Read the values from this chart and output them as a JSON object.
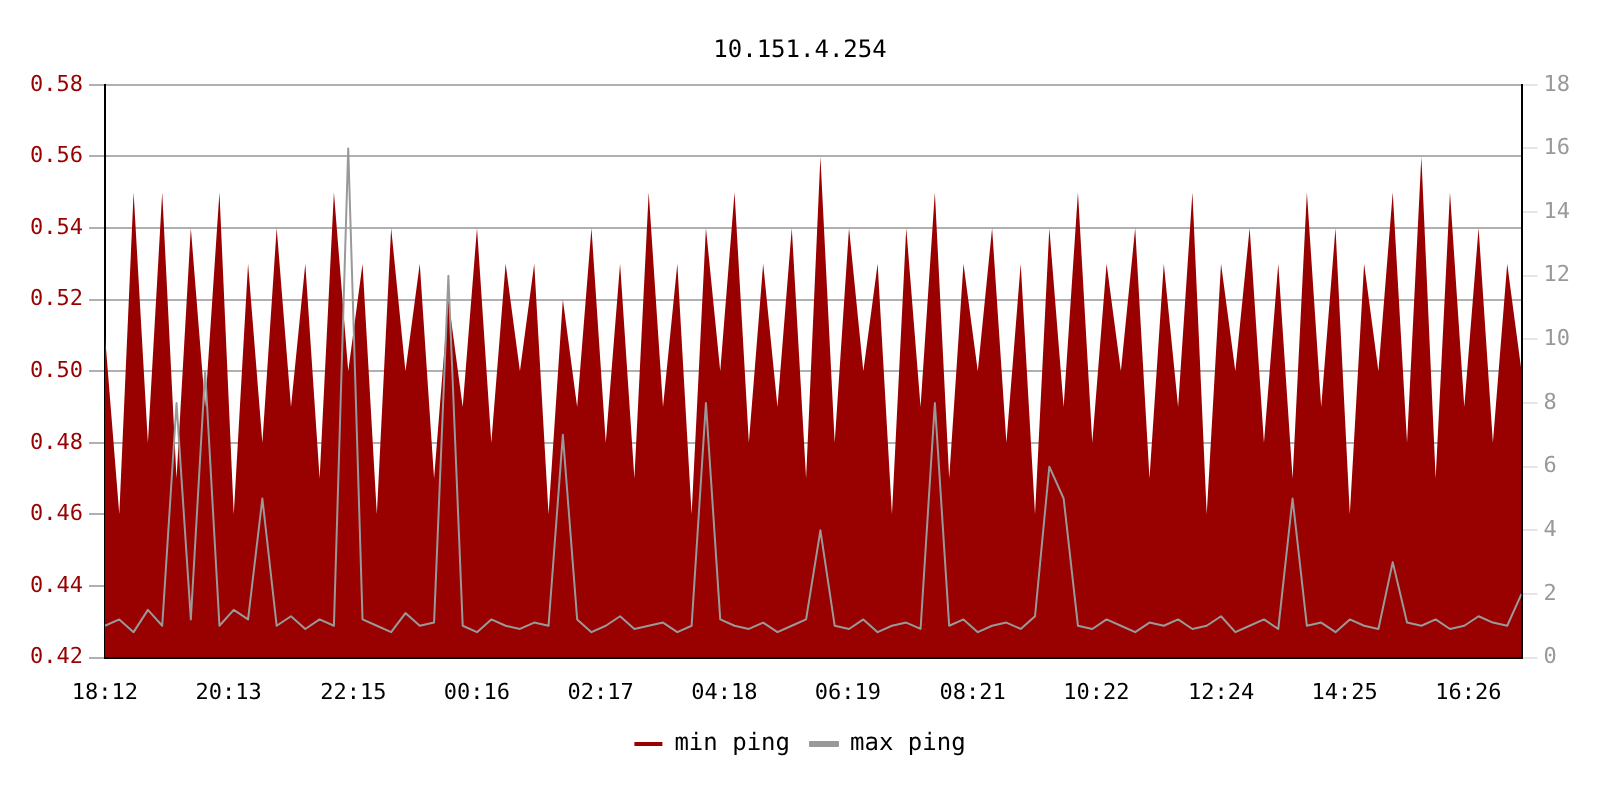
{
  "chart_data": {
    "type": "area",
    "title": "10.151.4.254",
    "x": [
      "--01-01T18:12",
      "--01-01T18:26",
      "--01-01T18:40",
      "--01-01T18:54",
      "--01-01T19:08",
      "--01-01T19:22",
      "--01-01T19:36",
      "--01-01T19:50",
      "--01-01T20:04",
      "--01-01T20:18",
      "--01-01T20:32",
      "--01-01T20:46",
      "--01-01T21:00",
      "--01-01T21:14",
      "--01-01T21:28",
      "--01-01T21:42",
      "--01-01T21:56",
      "--01-01T22:10",
      "--01-01T22:24",
      "--01-01T22:38",
      "--01-01T22:52",
      "--01-01T23:06",
      "--01-01T23:20",
      "--01-01T23:34",
      "--01-01T23:48",
      "--01-02T00:02",
      "--01-02T00:16",
      "--01-02T00:30",
      "--01-02T00:44",
      "--01-02T00:58",
      "--01-02T01:12",
      "--01-02T01:26",
      "--01-02T01:40",
      "--01-02T01:54",
      "--01-02T02:08",
      "--01-02T02:22",
      "--01-02T02:36",
      "--01-02T02:50",
      "--01-02T03:04",
      "--01-02T03:18",
      "--01-02T03:32",
      "--01-02T03:46",
      "--01-02T04:00",
      "--01-02T04:14",
      "--01-02T04:28",
      "--01-02T04:42",
      "--01-02T04:56",
      "--01-02T05:10",
      "--01-02T05:24",
      "--01-02T05:38",
      "--01-02T05:52",
      "--01-02T06:06",
      "--01-02T06:20",
      "--01-02T06:34",
      "--01-02T06:48",
      "--01-02T07:02",
      "--01-02T07:16",
      "--01-02T07:30",
      "--01-02T07:44",
      "--01-02T07:58",
      "--01-02T08:12",
      "--01-02T08:26",
      "--01-02T08:40",
      "--01-02T08:54",
      "--01-02T09:08",
      "--01-02T09:22",
      "--01-02T09:36",
      "--01-02T09:50",
      "--01-02T10:04",
      "--01-02T10:18",
      "--01-02T10:32",
      "--01-02T10:46",
      "--01-02T11:00",
      "--01-02T11:14",
      "--01-02T11:28",
      "--01-02T11:42",
      "--01-02T11:56",
      "--01-02T12:10",
      "--01-02T12:24",
      "--01-02T12:38",
      "--01-02T12:52",
      "--01-02T13:06",
      "--01-02T13:20",
      "--01-02T13:34",
      "--01-02T13:48",
      "--01-02T14:02",
      "--01-02T14:16",
      "--01-02T14:30",
      "--01-02T14:44",
      "--01-02T14:58",
      "--01-02T15:12",
      "--01-02T15:26",
      "--01-02T15:40",
      "--01-02T15:54",
      "--01-02T16:08",
      "--01-02T16:22",
      "--01-02T16:36",
      "--01-02T16:50",
      "--01-02T17:04",
      "--01-02T17:18"
    ],
    "series": [
      {
        "name": "min ping",
        "color": "#990000",
        "values": [
          0.51,
          0.46,
          0.55,
          0.48,
          0.55,
          0.47,
          0.54,
          0.49,
          0.55,
          0.46,
          0.53,
          0.48,
          0.54,
          0.49,
          0.53,
          0.47,
          0.55,
          0.5,
          0.53,
          0.46,
          0.54,
          0.5,
          0.53,
          0.47,
          0.52,
          0.49,
          0.54,
          0.48,
          0.53,
          0.5,
          0.53,
          0.46,
          0.52,
          0.49,
          0.54,
          0.48,
          0.53,
          0.47,
          0.55,
          0.49,
          0.53,
          0.46,
          0.54,
          0.5,
          0.55,
          0.48,
          0.53,
          0.49,
          0.54,
          0.47,
          0.56,
          0.48,
          0.54,
          0.5,
          0.53,
          0.46,
          0.54,
          0.49,
          0.55,
          0.47,
          0.53,
          0.5,
          0.54,
          0.48,
          0.53,
          0.46,
          0.54,
          0.49,
          0.55,
          0.48,
          0.53,
          0.5,
          0.54,
          0.47,
          0.53,
          0.49,
          0.55,
          0.46,
          0.53,
          0.5,
          0.54,
          0.48,
          0.53,
          0.47,
          0.55,
          0.49,
          0.54,
          0.46,
          0.53,
          0.5,
          0.55,
          0.48,
          0.56,
          0.47,
          0.55,
          0.49,
          0.54,
          0.48,
          0.53,
          0.5
        ]
      },
      {
        "name": "max ping",
        "type": "line",
        "axis": "y2",
        "color": "#999999",
        "values": [
          1,
          1.2,
          0.8,
          1.5,
          1,
          8,
          1.2,
          9,
          1,
          1.5,
          1.2,
          5,
          1,
          1.3,
          0.9,
          1.2,
          1,
          16,
          1.2,
          1,
          0.8,
          1.4,
          1,
          1.1,
          12,
          1,
          0.8,
          1.2,
          1,
          0.9,
          1.1,
          1,
          7,
          1.2,
          0.8,
          1,
          1.3,
          0.9,
          1,
          1.1,
          0.8,
          1,
          8,
          1.2,
          1,
          0.9,
          1.1,
          0.8,
          1,
          1.2,
          4,
          1,
          0.9,
          1.2,
          0.8,
          1,
          1.1,
          0.9,
          8,
          1,
          1.2,
          0.8,
          1,
          1.1,
          0.9,
          1.3,
          6,
          5,
          1,
          0.9,
          1.2,
          1,
          0.8,
          1.1,
          1,
          1.2,
          0.9,
          1,
          1.3,
          0.8,
          1,
          1.2,
          0.9,
          5,
          1,
          1.1,
          0.8,
          1.2,
          1,
          0.9,
          3,
          1.1,
          1,
          1.2,
          0.9,
          1,
          1.3,
          1.1,
          1,
          2
        ]
      }
    ],
    "xlim": [
      "--01-01T18:12",
      "--01-02T17:18"
    ],
    "xticks": [
      {
        "value": "--01-01T18:12",
        "label": "18:12"
      },
      {
        "value": "--01-01T20:13",
        "label": "20:13"
      },
      {
        "value": "--01-01T22:15",
        "label": "22:15"
      },
      {
        "value": "--01-02T00:16",
        "label": "00:16"
      },
      {
        "value": "--01-02T02:17",
        "label": "02:17"
      },
      {
        "value": "--01-02T04:18",
        "label": "04:18"
      },
      {
        "value": "--01-02T06:19",
        "label": "06:19"
      },
      {
        "value": "--01-02T08:21",
        "label": "08:21"
      },
      {
        "value": "--01-02T10:22",
        "label": "10:22"
      },
      {
        "value": "--01-02T12:24",
        "label": "12:24"
      },
      {
        "value": "--01-02T14:25",
        "label": "14:25"
      },
      {
        "value": "--01-02T16:26",
        "label": "16:26"
      }
    ],
    "ylim": [
      0.42,
      0.58
    ],
    "yticks": [
      {
        "value": 0.42,
        "label": "0.42"
      },
      {
        "value": 0.44,
        "label": "0.44"
      },
      {
        "value": 0.46,
        "label": "0.46"
      },
      {
        "value": 0.48,
        "label": "0.48"
      },
      {
        "value": 0.5,
        "label": "0.50"
      },
      {
        "value": 0.52,
        "label": "0.52"
      },
      {
        "value": 0.54,
        "label": "0.54"
      },
      {
        "value": 0.56,
        "label": "0.56"
      },
      {
        "value": 0.58,
        "label": "0.58"
      }
    ],
    "y2lim": [
      0,
      18
    ],
    "y2ticks": [
      0,
      2,
      4,
      6,
      8,
      10,
      12,
      14,
      16,
      18
    ],
    "grid": "y",
    "legend": "bottom",
    "marker": "none"
  }
}
